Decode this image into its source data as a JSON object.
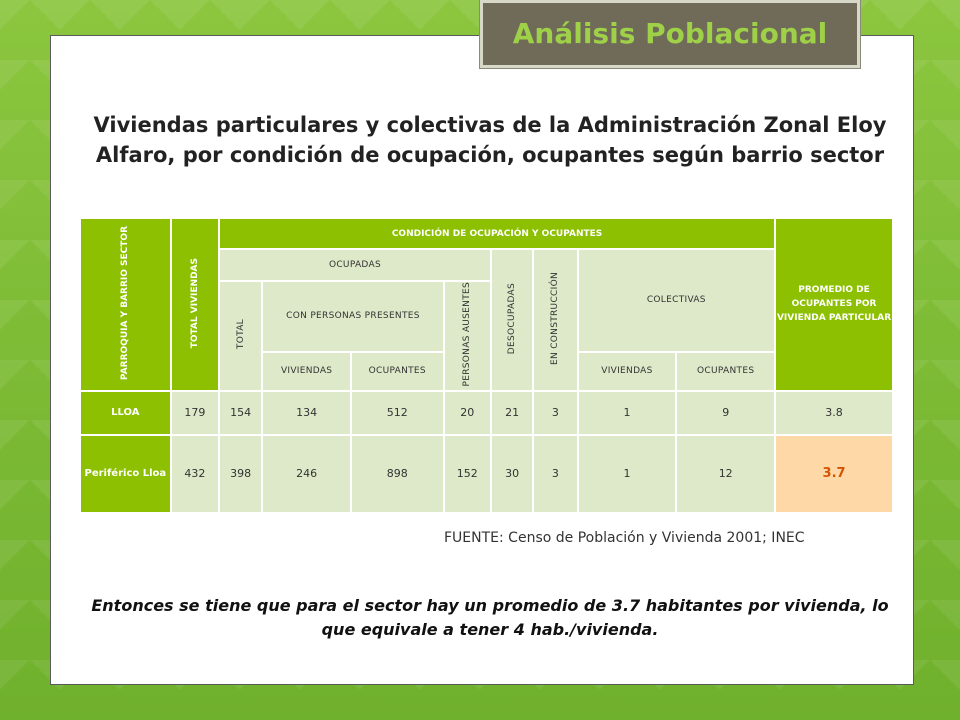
{
  "slide_title": "Análisis Poblacional",
  "heading": "Viviendas particulares y colectivas de la Administración Zonal Eloy Alfaro, por condición de ocupación, ocupantes según barrio sector",
  "table": {
    "header_parroquia": "PARROQUIA Y BARRIO SECTOR",
    "header_total_viviendas": "TOTAL VIVIENDAS",
    "header_condicion": "CONDICIÓN DE OCUPACIÓN Y OCUPANTES",
    "header_promedio": "PROMEDIO DE OCUPANTES POR VIVIENDA PARTICULAR",
    "header_ocupadas": "OCUPADAS",
    "header_desocupadas": "DESOCUPADAS",
    "header_construccion": "EN CONSTRUCCIÓN",
    "header_colectivas": "COLECTIVAS",
    "header_total": "TOTAL",
    "header_con_personas": "CON PERSONAS PRESENTES",
    "header_personas_ausentes": "PERSONAS AUSENTES",
    "header_viviendas": "VIVIENDAS",
    "header_ocupantes": "OCUPANTES",
    "header_viviendas_col": "VIVIENDAS",
    "header_ocupantes_col": "OCUPANTES",
    "rows": [
      {
        "label": "LLOA",
        "total_viviendas": "179",
        "total": "154",
        "viviendas": "134",
        "ocupantes": "512",
        "ausentes": "20",
        "desocupadas": "21",
        "construccion": "3",
        "col_viviendas": "1",
        "col_ocupantes": "9",
        "promedio": "3.8"
      },
      {
        "label": "Periférico Lloa",
        "total_viviendas": "432",
        "total": "398",
        "viviendas": "246",
        "ocupantes": "898",
        "ausentes": "152",
        "desocupadas": "30",
        "construccion": "3",
        "col_viviendas": "1",
        "col_ocupantes": "12",
        "promedio": "3.7"
      }
    ]
  },
  "fuente": "FUENTE: Censo de Población y Vivienda 2001; INEC",
  "conclusion": "Entonces se tiene que para el sector hay un promedio de 3.7 habitantes por vivienda, lo que equivale a tener 4 hab./vivienda.",
  "colors": {
    "accent_green": "#8cc000",
    "cell_bg": "#dde9c8",
    "highlight": "#ffd8a8",
    "title_box": "#706a59"
  }
}
